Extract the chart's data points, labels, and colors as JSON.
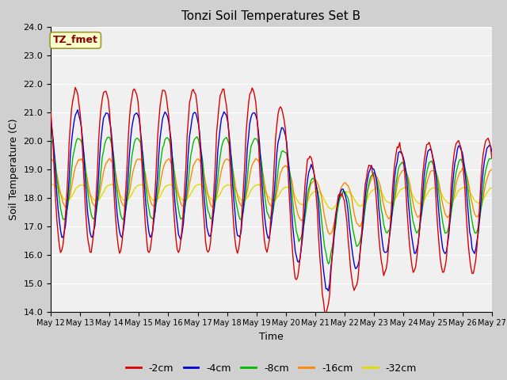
{
  "title": "Tonzi Soil Temperatures Set B",
  "xlabel": "Time",
  "ylabel": "Soil Temperature (C)",
  "ylim": [
    14.0,
    24.0
  ],
  "yticks": [
    14.0,
    15.0,
    16.0,
    17.0,
    18.0,
    19.0,
    20.0,
    21.0,
    22.0,
    23.0,
    24.0
  ],
  "xtick_labels": [
    "May 12",
    "May 13",
    "May 14",
    "May 15",
    "May 16",
    "May 17",
    "May 18",
    "May 19",
    "May 20",
    "May 21",
    "May 22",
    "May 23",
    "May 24",
    "May 25",
    "May 26",
    "May 27"
  ],
  "series_colors": {
    "-2cm": "#dd0000",
    "-4cm": "#0000dd",
    "-8cm": "#00bb00",
    "-16cm": "#ff8800",
    "-32cm": "#dddd00"
  },
  "legend_label": "TZ_fmet",
  "legend_bg": "#ffffcc",
  "legend_border": "#999933",
  "plot_bg": "#f0f0f0",
  "fig_bg": "#d0d0d0",
  "title_fontsize": 11,
  "axis_label_fontsize": 9,
  "tick_fontsize": 8,
  "n_days": 15,
  "pts_per_day": 24
}
